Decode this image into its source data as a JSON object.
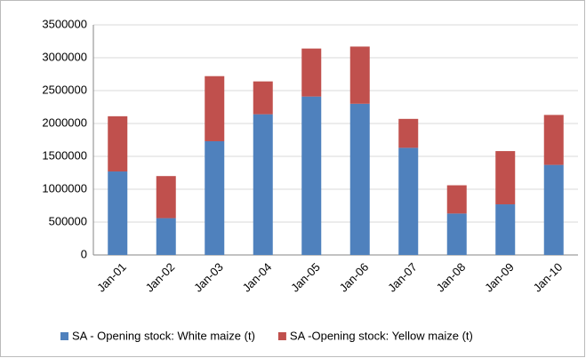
{
  "chart_data": {
    "type": "stacked_bar",
    "categories": [
      "Jan-01",
      "Jan-02",
      "Jan-03",
      "Jan-04",
      "Jan-05",
      "Jan-06",
      "Jan-07",
      "Jan-08",
      "Jan-09",
      "Jan-10"
    ],
    "series": [
      {
        "name": "SA - Opening stock: White maize (t)",
        "color": "#4f81bd",
        "values": [
          1270000,
          560000,
          1730000,
          2140000,
          2410000,
          2300000,
          1630000,
          630000,
          770000,
          1370000
        ]
      },
      {
        "name": "SA -Opening stock: Yellow maize (t)",
        "color": "#c0504d",
        "values": [
          840000,
          640000,
          990000,
          500000,
          730000,
          870000,
          440000,
          430000,
          810000,
          760000
        ]
      }
    ],
    "ylim": [
      0,
      3500000
    ],
    "yticks": [
      0,
      500000,
      1000000,
      1500000,
      2000000,
      2500000,
      3000000,
      3500000
    ],
    "grid": true,
    "legend": "bottom"
  }
}
